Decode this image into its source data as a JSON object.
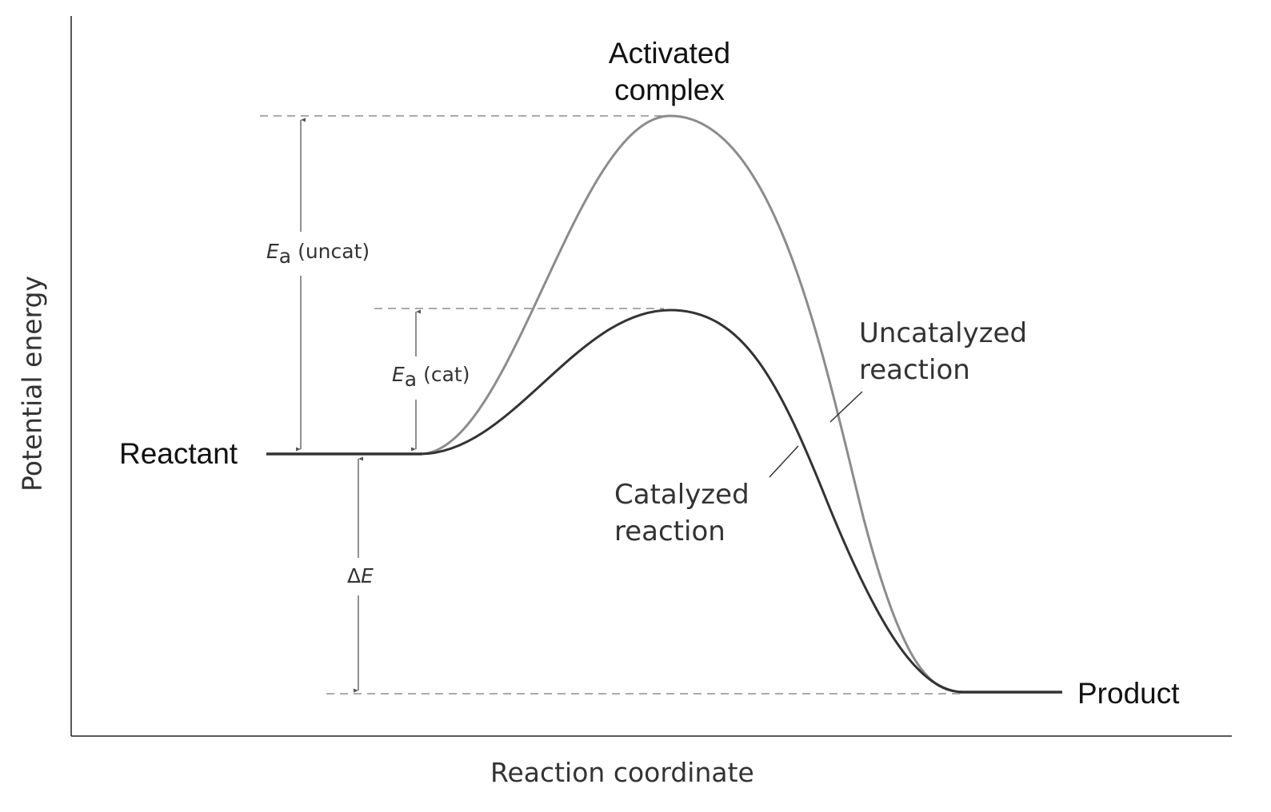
{
  "axes": {
    "xlabel": "Reaction coordinate",
    "ylabel": "Potential energy"
  },
  "labels": {
    "activated_complex": [
      "Activated",
      "complex"
    ],
    "reactant": "Reactant",
    "product": "Product",
    "uncatalyzed": [
      "Uncatalyzed",
      "reaction"
    ],
    "catalyzed": [
      "Catalyzed",
      "reaction"
    ],
    "ea_uncat": {
      "symbol": "E",
      "sub": "a",
      "text": "(uncat)"
    },
    "ea_cat": {
      "symbol": "E",
      "sub": "a",
      "text": "(cat)"
    },
    "delta_e": {
      "delta": "Δ",
      "symbol": "E"
    }
  },
  "colors": {
    "uncatalyzed_curve": "#8c8c8c",
    "catalyzed_curve": "#333333",
    "annotation": "#555555"
  }
}
